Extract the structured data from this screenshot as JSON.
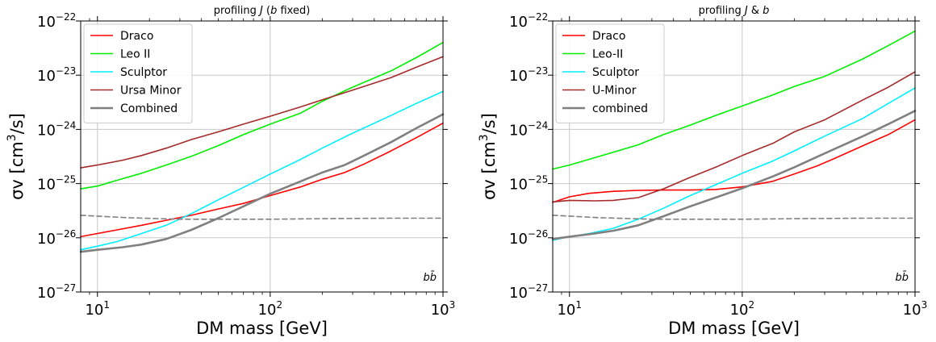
{
  "chart_data": [
    {
      "type": "line",
      "title": "profiling J (b fixed)",
      "title_parts": [
        "profiling ",
        "J",
        " (",
        "b",
        " fixed)"
      ],
      "xlabel": "DM mass [GeV]",
      "ylabel": "σv [cm³/s]",
      "ylabel_parts": [
        "σv [cm",
        "3",
        "/s]"
      ],
      "xscale": "log",
      "yscale": "log",
      "xlim": [
        8,
        1000
      ],
      "ylim": [
        1e-27,
        1e-22
      ],
      "grid": true,
      "legend_position": "top-left",
      "annotation": "bb̄",
      "xticks": [
        {
          "value": 10,
          "base": "10",
          "exp": "1"
        },
        {
          "value": 100,
          "base": "10",
          "exp": "2"
        },
        {
          "value": 1000,
          "base": "10",
          "exp": "3"
        }
      ],
      "yticks": [
        {
          "value": 1e-27,
          "base": "10",
          "exp": "−27"
        },
        {
          "value": 1e-26,
          "base": "10",
          "exp": "−26"
        },
        {
          "value": 1e-25,
          "base": "10",
          "exp": "−25"
        },
        {
          "value": 1e-24,
          "base": "10",
          "exp": "−24"
        },
        {
          "value": 1e-23,
          "base": "10",
          "exp": "−23"
        },
        {
          "value": 1e-22,
          "base": "10",
          "exp": "−22"
        }
      ],
      "series": [
        {
          "name": "Draco",
          "color": "#ff0000",
          "width": 1.6,
          "dashed": false,
          "points": [
            [
              8,
              1.05e-26
            ],
            [
              10,
              1.2e-26
            ],
            [
              13,
              1.4e-26
            ],
            [
              18,
              1.7e-26
            ],
            [
              25,
              2.1e-26
            ],
            [
              35,
              2.6e-26
            ],
            [
              50,
              3.4e-26
            ],
            [
              70,
              4.3e-26
            ],
            [
              100,
              6e-26
            ],
            [
              150,
              8.7e-26
            ],
            [
              200,
              1.2e-25
            ],
            [
              270,
              1.6e-25
            ],
            [
              350,
              2.3e-25
            ],
            [
              500,
              4e-25
            ],
            [
              700,
              7e-25
            ],
            [
              1000,
              1.3e-24
            ]
          ]
        },
        {
          "name": "Leo II",
          "color": "#00ee00",
          "width": 1.6,
          "dashed": false,
          "points": [
            [
              8,
              8e-26
            ],
            [
              10,
              9e-26
            ],
            [
              13,
              1.15e-25
            ],
            [
              18,
              1.55e-25
            ],
            [
              25,
              2.2e-25
            ],
            [
              35,
              3.2e-25
            ],
            [
              50,
              5e-25
            ],
            [
              70,
              8e-25
            ],
            [
              100,
              1.25e-24
            ],
            [
              150,
              2e-24
            ],
            [
              200,
              3.3e-24
            ],
            [
              300,
              6e-24
            ],
            [
              500,
              1.2e-23
            ],
            [
              700,
              2.1e-23
            ],
            [
              1000,
              4e-23
            ]
          ]
        },
        {
          "name": "Sculptor",
          "color": "#00eeff",
          "width": 1.6,
          "dashed": false,
          "points": [
            [
              8,
              6e-27
            ],
            [
              10,
              7e-27
            ],
            [
              13,
              8.5e-27
            ],
            [
              18,
              1.2e-26
            ],
            [
              25,
              1.7e-26
            ],
            [
              35,
              2.8e-26
            ],
            [
              50,
              5e-26
            ],
            [
              70,
              8.5e-26
            ],
            [
              100,
              1.5e-25
            ],
            [
              150,
              2.8e-25
            ],
            [
              200,
              4.5e-25
            ],
            [
              300,
              8.5e-25
            ],
            [
              500,
              1.8e-24
            ],
            [
              700,
              3e-24
            ],
            [
              1000,
              5e-24
            ]
          ]
        },
        {
          "name": "Ursa Minor",
          "color": "#a52a2a",
          "width": 1.6,
          "dashed": false,
          "points": [
            [
              8,
              1.95e-25
            ],
            [
              10,
              2.2e-25
            ],
            [
              14,
              2.7e-25
            ],
            [
              18,
              3.3e-25
            ],
            [
              25,
              4.5e-25
            ],
            [
              35,
              6.5e-25
            ],
            [
              50,
              9e-25
            ],
            [
              70,
              1.25e-24
            ],
            [
              100,
              1.75e-24
            ],
            [
              150,
              2.6e-24
            ],
            [
              200,
              3.5e-24
            ],
            [
              300,
              5.3e-24
            ],
            [
              500,
              9e-24
            ],
            [
              700,
              1.4e-23
            ],
            [
              1000,
              2.2e-23
            ]
          ]
        },
        {
          "name": "Combined",
          "color": "#808080",
          "width": 2.6,
          "dashed": false,
          "points": [
            [
              8,
              5.5e-27
            ],
            [
              10,
              6e-27
            ],
            [
              14,
              6.7e-27
            ],
            [
              18,
              7.5e-27
            ],
            [
              25,
              9.5e-27
            ],
            [
              35,
              1.4e-26
            ],
            [
              50,
              2.3e-26
            ],
            [
              70,
              3.8e-26
            ],
            [
              100,
              6.5e-26
            ],
            [
              150,
              1.1e-25
            ],
            [
              200,
              1.6e-25
            ],
            [
              270,
              2.2e-25
            ],
            [
              350,
              3.3e-25
            ],
            [
              500,
              5.8e-25
            ],
            [
              700,
              1.05e-24
            ],
            [
              1000,
              1.9e-24
            ]
          ]
        },
        {
          "name": "",
          "color": "#808080",
          "width": 1.6,
          "dashed": true,
          "points": [
            [
              8,
              2.6e-26
            ],
            [
              15,
              2.35e-26
            ],
            [
              30,
              2.2e-26
            ],
            [
              60,
              2.2e-26
            ],
            [
              100,
              2.2e-26
            ],
            [
              200,
              2.25e-26
            ],
            [
              500,
              2.3e-26
            ],
            [
              1000,
              2.3e-26
            ]
          ]
        }
      ]
    },
    {
      "type": "line",
      "title": "profiling J & b",
      "title_parts": [
        "profiling ",
        "J",
        " & ",
        "b",
        ""
      ],
      "xlabel": "DM mass [GeV]",
      "ylabel": "σv [cm³/s]",
      "ylabel_parts": [
        "σv [cm",
        "3",
        "/s]"
      ],
      "xscale": "log",
      "yscale": "log",
      "xlim": [
        8,
        1000
      ],
      "ylim": [
        1e-27,
        1e-22
      ],
      "grid": true,
      "legend_position": "top-left",
      "annotation": "bb̄",
      "xticks": [
        {
          "value": 10,
          "base": "10",
          "exp": "1"
        },
        {
          "value": 100,
          "base": "10",
          "exp": "2"
        },
        {
          "value": 1000,
          "base": "10",
          "exp": "3"
        }
      ],
      "yticks": [
        {
          "value": 1e-27,
          "base": "10",
          "exp": "−27"
        },
        {
          "value": 1e-26,
          "base": "10",
          "exp": "−26"
        },
        {
          "value": 1e-25,
          "base": "10",
          "exp": "−25"
        },
        {
          "value": 1e-24,
          "base": "10",
          "exp": "−24"
        },
        {
          "value": 1e-23,
          "base": "10",
          "exp": "−23"
        },
        {
          "value": 1e-22,
          "base": "10",
          "exp": "−22"
        }
      ],
      "series": [
        {
          "name": "Draco",
          "color": "#ff0000",
          "width": 1.6,
          "dashed": false,
          "points": [
            [
              8,
              4.5e-26
            ],
            [
              10,
              5.7e-26
            ],
            [
              13,
              6.6e-26
            ],
            [
              18,
              7.2e-26
            ],
            [
              25,
              7.5e-26
            ],
            [
              35,
              7.6e-26
            ],
            [
              50,
              7.6e-26
            ],
            [
              70,
              7.8e-26
            ],
            [
              100,
              8.7e-26
            ],
            [
              150,
              1.1e-25
            ],
            [
              200,
              1.5e-25
            ],
            [
              270,
              2.1e-25
            ],
            [
              350,
              3e-25
            ],
            [
              500,
              5e-25
            ],
            [
              700,
              8e-25
            ],
            [
              1000,
              1.5e-24
            ]
          ]
        },
        {
          "name": "Leo-II",
          "color": "#00ee00",
          "width": 1.6,
          "dashed": false,
          "points": [
            [
              8,
              1.85e-25
            ],
            [
              10,
              2.2e-25
            ],
            [
              14,
              3e-25
            ],
            [
              18,
              3.8e-25
            ],
            [
              25,
              5.2e-25
            ],
            [
              35,
              8e-25
            ],
            [
              50,
              1.2e-24
            ],
            [
              70,
              1.8e-24
            ],
            [
              100,
              2.7e-24
            ],
            [
              150,
              4.3e-24
            ],
            [
              200,
              6.2e-24
            ],
            [
              300,
              9.5e-24
            ],
            [
              500,
              2e-23
            ],
            [
              700,
              3.5e-23
            ],
            [
              1000,
              6.5e-23
            ]
          ]
        },
        {
          "name": "Sculptor",
          "color": "#00eeff",
          "width": 1.6,
          "dashed": false,
          "points": [
            [
              8,
              9e-27
            ],
            [
              10,
              1.05e-26
            ],
            [
              13,
              1.2e-26
            ],
            [
              18,
              1.5e-26
            ],
            [
              25,
              2.2e-26
            ],
            [
              35,
              3.5e-26
            ],
            [
              50,
              6e-26
            ],
            [
              70,
              9.5e-26
            ],
            [
              100,
              1.55e-25
            ],
            [
              150,
              2.6e-25
            ],
            [
              200,
              4e-25
            ],
            [
              300,
              7.5e-25
            ],
            [
              500,
              1.6e-24
            ],
            [
              700,
              3e-24
            ],
            [
              1000,
              5.8e-24
            ]
          ]
        },
        {
          "name": "U-Minor",
          "color": "#a52a2a",
          "width": 1.6,
          "dashed": false,
          "points": [
            [
              8,
              4.6e-26
            ],
            [
              10,
              4.9e-26
            ],
            [
              14,
              4.8e-26
            ],
            [
              18,
              4.9e-26
            ],
            [
              25,
              5.5e-26
            ],
            [
              35,
              8e-26
            ],
            [
              50,
              1.3e-25
            ],
            [
              70,
              2e-25
            ],
            [
              100,
              3.3e-25
            ],
            [
              150,
              5.5e-25
            ],
            [
              200,
              9e-25
            ],
            [
              300,
              1.5e-24
            ],
            [
              500,
              3.5e-24
            ],
            [
              700,
              6e-24
            ],
            [
              1000,
              1.15e-23
            ]
          ]
        },
        {
          "name": "combined",
          "color": "#808080",
          "width": 2.6,
          "dashed": false,
          "points": [
            [
              8,
              9.5e-27
            ],
            [
              10,
              1.05e-26
            ],
            [
              14,
              1.2e-26
            ],
            [
              18,
              1.35e-26
            ],
            [
              25,
              1.7e-26
            ],
            [
              35,
              2.5e-26
            ],
            [
              50,
              3.8e-26
            ],
            [
              70,
              5.5e-26
            ],
            [
              100,
              8.2e-26
            ],
            [
              150,
              1.35e-25
            ],
            [
              200,
              2e-25
            ],
            [
              300,
              3.6e-25
            ],
            [
              500,
              7.5e-25
            ],
            [
              700,
              1.25e-24
            ],
            [
              1000,
              2.2e-24
            ]
          ]
        },
        {
          "name": "",
          "color": "#808080",
          "width": 1.6,
          "dashed": true,
          "points": [
            [
              8,
              2.6e-26
            ],
            [
              15,
              2.35e-26
            ],
            [
              30,
              2.2e-26
            ],
            [
              60,
              2.2e-26
            ],
            [
              100,
              2.2e-26
            ],
            [
              200,
              2.25e-26
            ],
            [
              500,
              2.3e-26
            ],
            [
              1000,
              2.3e-26
            ]
          ]
        }
      ]
    }
  ]
}
